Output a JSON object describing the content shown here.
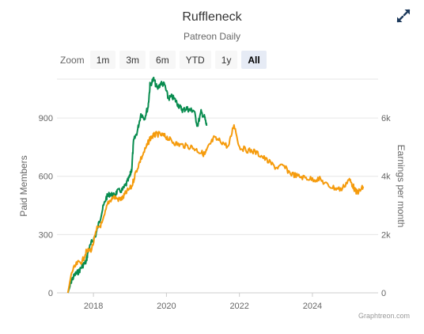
{
  "header": {
    "title": "Ruffleneck",
    "subtitle": "Patreon Daily"
  },
  "zoom": {
    "label": "Zoom",
    "buttons": [
      "1m",
      "3m",
      "6m",
      "YTD",
      "1y",
      "All"
    ],
    "active": "All"
  },
  "credits": "Graphtreon.com",
  "chart_data": {
    "type": "line",
    "x_ticks": [
      "2018",
      "2020",
      "2022",
      "2024"
    ],
    "x_range": [
      2017.0,
      2025.8
    ],
    "y_left": {
      "title": "Paid Members",
      "range": [
        0,
        1100
      ],
      "ticks": [
        "0",
        "300",
        "600",
        "900"
      ]
    },
    "y_right": {
      "title": "Earnings per month",
      "range": [
        0,
        7333
      ],
      "ticks": [
        "0",
        "2k",
        "4k",
        "6k"
      ]
    },
    "grid": true,
    "legend": "none",
    "colors": {
      "members": "#088c4f",
      "earnings": "#f59b0c"
    },
    "series": [
      {
        "axis": "left",
        "color": "#088c4f",
        "points": [
          [
            2017.3,
            0
          ],
          [
            2017.35,
            30
          ],
          [
            2017.4,
            65
          ],
          [
            2017.5,
            95
          ],
          [
            2017.6,
            110
          ],
          [
            2017.7,
            140
          ],
          [
            2017.8,
            160
          ],
          [
            2017.85,
            210
          ],
          [
            2017.95,
            260
          ],
          [
            2018.05,
            290
          ],
          [
            2018.15,
            360
          ],
          [
            2018.25,
            430
          ],
          [
            2018.35,
            490
          ],
          [
            2018.45,
            510
          ],
          [
            2018.55,
            500
          ],
          [
            2018.65,
            520
          ],
          [
            2018.8,
            530
          ],
          [
            2018.9,
            560
          ],
          [
            2019.0,
            600
          ],
          [
            2019.05,
            640
          ],
          [
            2019.1,
            780
          ],
          [
            2019.2,
            830
          ],
          [
            2019.3,
            920
          ],
          [
            2019.4,
            900
          ],
          [
            2019.5,
            960
          ],
          [
            2019.55,
            1070
          ],
          [
            2019.65,
            1100
          ],
          [
            2019.75,
            1050
          ],
          [
            2019.85,
            1080
          ],
          [
            2019.95,
            1070
          ],
          [
            2020.05,
            1000
          ],
          [
            2020.15,
            1010
          ],
          [
            2020.25,
            990
          ],
          [
            2020.35,
            960
          ],
          [
            2020.45,
            940
          ],
          [
            2020.55,
            950
          ],
          [
            2020.65,
            940
          ],
          [
            2020.75,
            940
          ],
          [
            2020.85,
            860
          ],
          [
            2020.95,
            930
          ],
          [
            2021.05,
            900
          ],
          [
            2021.1,
            860
          ]
        ]
      },
      {
        "axis": "right",
        "color": "#f59b0c",
        "points": [
          [
            2017.3,
            0
          ],
          [
            2017.4,
            700
          ],
          [
            2017.55,
            1000
          ],
          [
            2017.7,
            1100
          ],
          [
            2017.8,
            1400
          ],
          [
            2017.95,
            1500
          ],
          [
            2018.1,
            2200
          ],
          [
            2018.25,
            2400
          ],
          [
            2018.4,
            3100
          ],
          [
            2018.55,
            3300
          ],
          [
            2018.7,
            3200
          ],
          [
            2018.8,
            3250
          ],
          [
            2018.9,
            3450
          ],
          [
            2019.05,
            3650
          ],
          [
            2019.15,
            4100
          ],
          [
            2019.3,
            4600
          ],
          [
            2019.45,
            5000
          ],
          [
            2019.55,
            5300
          ],
          [
            2019.65,
            5400
          ],
          [
            2019.75,
            5450
          ],
          [
            2019.9,
            5400
          ],
          [
            2020.0,
            5350
          ],
          [
            2020.15,
            5200
          ],
          [
            2020.3,
            5100
          ],
          [
            2020.5,
            5050
          ],
          [
            2020.7,
            5000
          ],
          [
            2020.9,
            4850
          ],
          [
            2021.05,
            4750
          ],
          [
            2021.15,
            5000
          ],
          [
            2021.3,
            5300
          ],
          [
            2021.5,
            5200
          ],
          [
            2021.7,
            5000
          ],
          [
            2021.85,
            5800
          ],
          [
            2022.0,
            5000
          ],
          [
            2022.2,
            4900
          ],
          [
            2022.4,
            4850
          ],
          [
            2022.6,
            4700
          ],
          [
            2022.8,
            4500
          ],
          [
            2023.0,
            4300
          ],
          [
            2023.2,
            4350
          ],
          [
            2023.4,
            4100
          ],
          [
            2023.6,
            4000
          ],
          [
            2023.8,
            3950
          ],
          [
            2024.0,
            3900
          ],
          [
            2024.2,
            3900
          ],
          [
            2024.4,
            3700
          ],
          [
            2024.6,
            3600
          ],
          [
            2024.8,
            3550
          ],
          [
            2025.0,
            3900
          ],
          [
            2025.1,
            3700
          ],
          [
            2025.2,
            3450
          ],
          [
            2025.3,
            3500
          ],
          [
            2025.4,
            3650
          ]
        ]
      }
    ]
  }
}
